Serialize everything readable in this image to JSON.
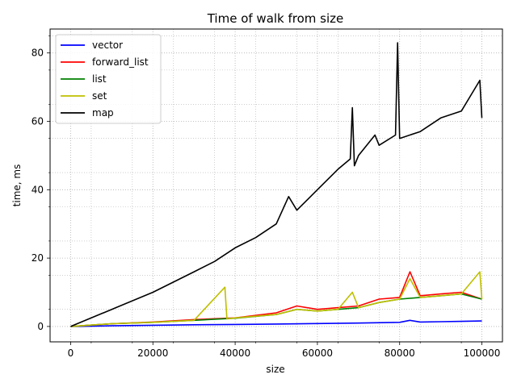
{
  "chart_data": {
    "type": "line",
    "title": "Time of walk from size",
    "xlabel": "size",
    "ylabel": "time, ms",
    "xlim": [
      -5000,
      105000
    ],
    "ylim": [
      -4.5,
      87
    ],
    "xticks": [
      0,
      20000,
      40000,
      60000,
      80000,
      100000
    ],
    "xtick_labels": [
      "0",
      "20000",
      "40000",
      "60000",
      "80000",
      "100000"
    ],
    "yticks": [
      0,
      20,
      40,
      60,
      80
    ],
    "ytick_labels": [
      "0",
      "20",
      "40",
      "60",
      "80"
    ],
    "grid": true,
    "legend_position": "top-left",
    "series": [
      {
        "name": "vector",
        "color": "#0000ff",
        "x": [
          0,
          10000,
          20000,
          30000,
          40000,
          50000,
          60000,
          70000,
          80000,
          82500,
          85000,
          90000,
          95000,
          100000
        ],
        "y": [
          0,
          0.2,
          0.35,
          0.5,
          0.6,
          0.7,
          0.85,
          1.0,
          1.2,
          1.8,
          1.3,
          1.4,
          1.5,
          1.6
        ]
      },
      {
        "name": "forward_list",
        "color": "#ff0000",
        "x": [
          0,
          10000,
          20000,
          30000,
          40000,
          50000,
          55000,
          60000,
          65000,
          70000,
          75000,
          80000,
          82500,
          85000,
          90000,
          95000,
          100000
        ],
        "y": [
          0,
          0.8,
          1.3,
          2.0,
          2.5,
          4.0,
          6.0,
          5.0,
          5.5,
          6.0,
          8.0,
          8.5,
          16.0,
          9.0,
          9.5,
          10.0,
          8.0
        ]
      },
      {
        "name": "list",
        "color": "#008000",
        "x": [
          0,
          10000,
          20000,
          30000,
          40000,
          50000,
          55000,
          60000,
          65000,
          70000,
          75000,
          80000,
          85000,
          90000,
          95000,
          100000
        ],
        "y": [
          0,
          0.8,
          1.2,
          1.8,
          2.4,
          3.5,
          5.0,
          4.5,
          5.0,
          5.5,
          7.0,
          8.0,
          8.5,
          9.0,
          9.5,
          8.0
        ]
      },
      {
        "name": "set",
        "color": "#bfbf00",
        "x": [
          0,
          10000,
          20000,
          30000,
          37500,
          38000,
          40000,
          50000,
          55000,
          60000,
          65000,
          68500,
          70000,
          75000,
          80000,
          82500,
          85000,
          90000,
          95000,
          99500,
          100000
        ],
        "y": [
          0,
          0.8,
          1.2,
          1.8,
          11.5,
          2.2,
          2.5,
          3.5,
          5.0,
          4.5,
          5.0,
          10.0,
          5.5,
          7.0,
          8.0,
          14.0,
          8.5,
          9.0,
          9.5,
          16.0,
          8.0
        ]
      },
      {
        "name": "map",
        "color": "#000000",
        "x": [
          0,
          10000,
          20000,
          30000,
          35000,
          40000,
          45000,
          50000,
          53000,
          55000,
          60000,
          65000,
          68000,
          68500,
          69000,
          70000,
          74000,
          75000,
          79000,
          79500,
          80000,
          85000,
          90000,
          95000,
          99500,
          100000
        ],
        "y": [
          0,
          5,
          10,
          16,
          19,
          23,
          26,
          30,
          38,
          34,
          40,
          46,
          49,
          64,
          47,
          50,
          56,
          53,
          56,
          83,
          55,
          57,
          61,
          63,
          72,
          61
        ]
      }
    ]
  }
}
